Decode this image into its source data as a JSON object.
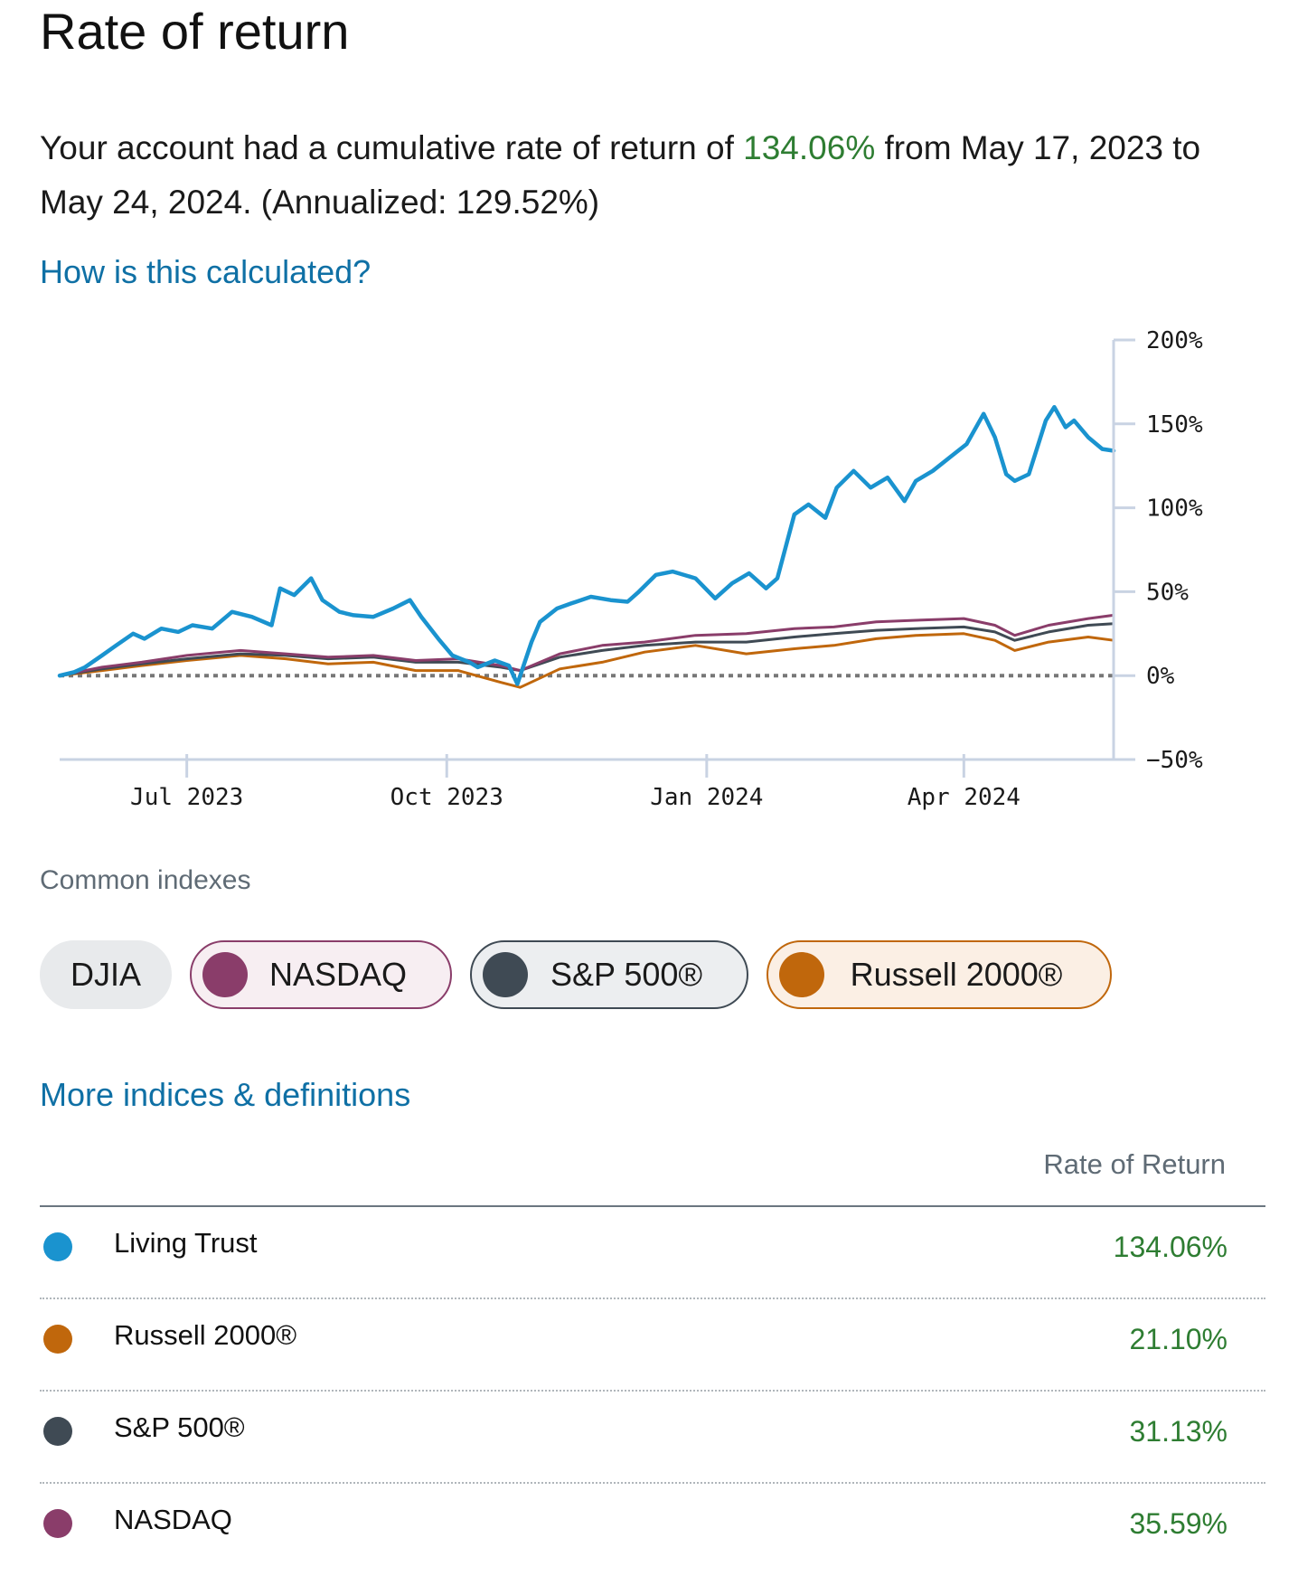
{
  "page": {
    "title": "Rate of return",
    "summary_prefix": "Your account had a cumulative rate of return of ",
    "summary_value": "134.06%",
    "summary_suffix": " from May 17, 2023 to May 24, 2024. (Annualized: 129.52%)",
    "how_link": "How is this calculated?",
    "common_indexes_label": "Common indexes",
    "more_link": "More indices & definitions",
    "table_header": "Rate of Return"
  },
  "colors": {
    "living_trust": "#1a93cf",
    "nasdaq": "#8a3d6a",
    "sp500": "#3f4a54",
    "russell": "#c0670c",
    "positive": "#2e7d32",
    "link": "#0f70a5"
  },
  "chips": [
    {
      "label": "DJIA",
      "active": false
    },
    {
      "label": "NASDAQ",
      "active": true
    },
    {
      "label": "S&P 500®",
      "active": true
    },
    {
      "label": "Russell 2000®",
      "active": true
    }
  ],
  "table_rows": [
    {
      "name": "Living Trust",
      "value": "134.06%",
      "color_key": "living_trust"
    },
    {
      "name": "Russell 2000®",
      "value": "21.10%",
      "color_key": "russell"
    },
    {
      "name": "S&P 500®",
      "value": "31.13%",
      "color_key": "sp500"
    },
    {
      "name": "NASDAQ",
      "value": "35.59%",
      "color_key": "nasdaq"
    }
  ],
  "chart_data": {
    "type": "line",
    "title": "Rate of return",
    "xlabel": "",
    "ylabel": "",
    "x_range": [
      "2023-05-17",
      "2024-05-24"
    ],
    "ylim": [
      -50,
      200
    ],
    "y_ticks": [
      200,
      150,
      100,
      50,
      0,
      -50
    ],
    "y_tick_labels": [
      "200%",
      "150%",
      "100%",
      "50%",
      "0%",
      "−50%"
    ],
    "x_ticks": [
      {
        "date": "2023-07-01",
        "label": "Jul 2023"
      },
      {
        "date": "2023-10-01",
        "label": "Oct 2023"
      },
      {
        "date": "2024-01-01",
        "label": "Jan 2024"
      },
      {
        "date": "2024-04-01",
        "label": "Apr 2024"
      }
    ],
    "baseline": 0,
    "series": [
      {
        "name": "Living Trust",
        "color_key": "living_trust",
        "dates": [
          "2023-05-17",
          "2023-05-22",
          "2023-05-26",
          "2023-06-01",
          "2023-06-06",
          "2023-06-12",
          "2023-06-16",
          "2023-06-22",
          "2023-06-28",
          "2023-07-03",
          "2023-07-10",
          "2023-07-17",
          "2023-07-24",
          "2023-07-31",
          "2023-08-03",
          "2023-08-08",
          "2023-08-14",
          "2023-08-18",
          "2023-08-24",
          "2023-08-29",
          "2023-09-05",
          "2023-09-12",
          "2023-09-18",
          "2023-09-22",
          "2023-09-28",
          "2023-10-03",
          "2023-10-09",
          "2023-10-12",
          "2023-10-18",
          "2023-10-23",
          "2023-10-26",
          "2023-10-31",
          "2023-11-03",
          "2023-11-09",
          "2023-11-14",
          "2023-11-21",
          "2023-11-28",
          "2023-12-04",
          "2023-12-08",
          "2023-12-14",
          "2023-12-20",
          "2023-12-28",
          "2024-01-04",
          "2024-01-10",
          "2024-01-16",
          "2024-01-22",
          "2024-01-26",
          "2024-02-01",
          "2024-02-06",
          "2024-02-12",
          "2024-02-16",
          "2024-02-22",
          "2024-02-28",
          "2024-03-05",
          "2024-03-11",
          "2024-03-15",
          "2024-03-21",
          "2024-03-27",
          "2024-04-02",
          "2024-04-08",
          "2024-04-12",
          "2024-04-16",
          "2024-04-19",
          "2024-04-24",
          "2024-04-30",
          "2024-05-03",
          "2024-05-07",
          "2024-05-10",
          "2024-05-15",
          "2024-05-20",
          "2024-05-24"
        ],
        "values": [
          0,
          2,
          5,
          12,
          18,
          25,
          22,
          28,
          26,
          30,
          28,
          38,
          35,
          30,
          52,
          48,
          58,
          45,
          38,
          36,
          35,
          40,
          45,
          35,
          22,
          12,
          8,
          5,
          9,
          6,
          -5,
          20,
          32,
          40,
          43,
          47,
          45,
          44,
          50,
          60,
          62,
          58,
          46,
          55,
          61,
          52,
          58,
          96,
          102,
          94,
          112,
          122,
          112,
          118,
          104,
          116,
          122,
          130,
          138,
          156,
          142,
          120,
          116,
          120,
          152,
          160,
          148,
          152,
          142,
          135,
          134
        ]
      },
      {
        "name": "NASDAQ",
        "color_key": "nasdaq",
        "dates": [
          "2023-05-17",
          "2023-06-01",
          "2023-06-15",
          "2023-07-01",
          "2023-07-20",
          "2023-08-05",
          "2023-08-20",
          "2023-09-05",
          "2023-09-20",
          "2023-10-05",
          "2023-10-20",
          "2023-10-27",
          "2023-11-10",
          "2023-11-25",
          "2023-12-10",
          "2023-12-28",
          "2024-01-15",
          "2024-02-01",
          "2024-02-15",
          "2024-03-01",
          "2024-03-15",
          "2024-04-01",
          "2024-04-12",
          "2024-04-19",
          "2024-05-01",
          "2024-05-15",
          "2024-05-24"
        ],
        "values": [
          0,
          5,
          8,
          12,
          15,
          13,
          11,
          12,
          9,
          10,
          6,
          3,
          13,
          18,
          20,
          24,
          25,
          28,
          29,
          32,
          33,
          34,
          30,
          24,
          30,
          34,
          36
        ]
      },
      {
        "name": "S&P 500®",
        "color_key": "sp500",
        "dates": [
          "2023-05-17",
          "2023-06-01",
          "2023-06-15",
          "2023-07-01",
          "2023-07-20",
          "2023-08-05",
          "2023-08-20",
          "2023-09-05",
          "2023-09-20",
          "2023-10-05",
          "2023-10-20",
          "2023-10-27",
          "2023-11-10",
          "2023-11-25",
          "2023-12-10",
          "2023-12-28",
          "2024-01-15",
          "2024-02-01",
          "2024-02-15",
          "2024-03-01",
          "2024-03-15",
          "2024-04-01",
          "2024-04-12",
          "2024-04-19",
          "2024-05-01",
          "2024-05-15",
          "2024-05-24"
        ],
        "values": [
          0,
          4,
          7,
          10,
          13,
          12,
          10,
          11,
          8,
          8,
          5,
          3,
          11,
          15,
          18,
          20,
          20,
          23,
          25,
          27,
          28,
          29,
          26,
          21,
          26,
          30,
          31
        ]
      },
      {
        "name": "Russell 2000®",
        "color_key": "russell",
        "dates": [
          "2023-05-17",
          "2023-06-01",
          "2023-06-15",
          "2023-07-01",
          "2023-07-20",
          "2023-08-05",
          "2023-08-20",
          "2023-09-05",
          "2023-09-20",
          "2023-10-05",
          "2023-10-20",
          "2023-10-27",
          "2023-11-10",
          "2023-11-25",
          "2023-12-10",
          "2023-12-28",
          "2024-01-15",
          "2024-02-01",
          "2024-02-15",
          "2024-03-01",
          "2024-03-15",
          "2024-04-01",
          "2024-04-12",
          "2024-04-19",
          "2024-05-01",
          "2024-05-15",
          "2024-05-24"
        ],
        "values": [
          0,
          3,
          6,
          9,
          12,
          10,
          7,
          8,
          3,
          3,
          -4,
          -7,
          4,
          8,
          14,
          18,
          13,
          16,
          18,
          22,
          24,
          25,
          21,
          15,
          20,
          23,
          21
        ]
      }
    ]
  }
}
